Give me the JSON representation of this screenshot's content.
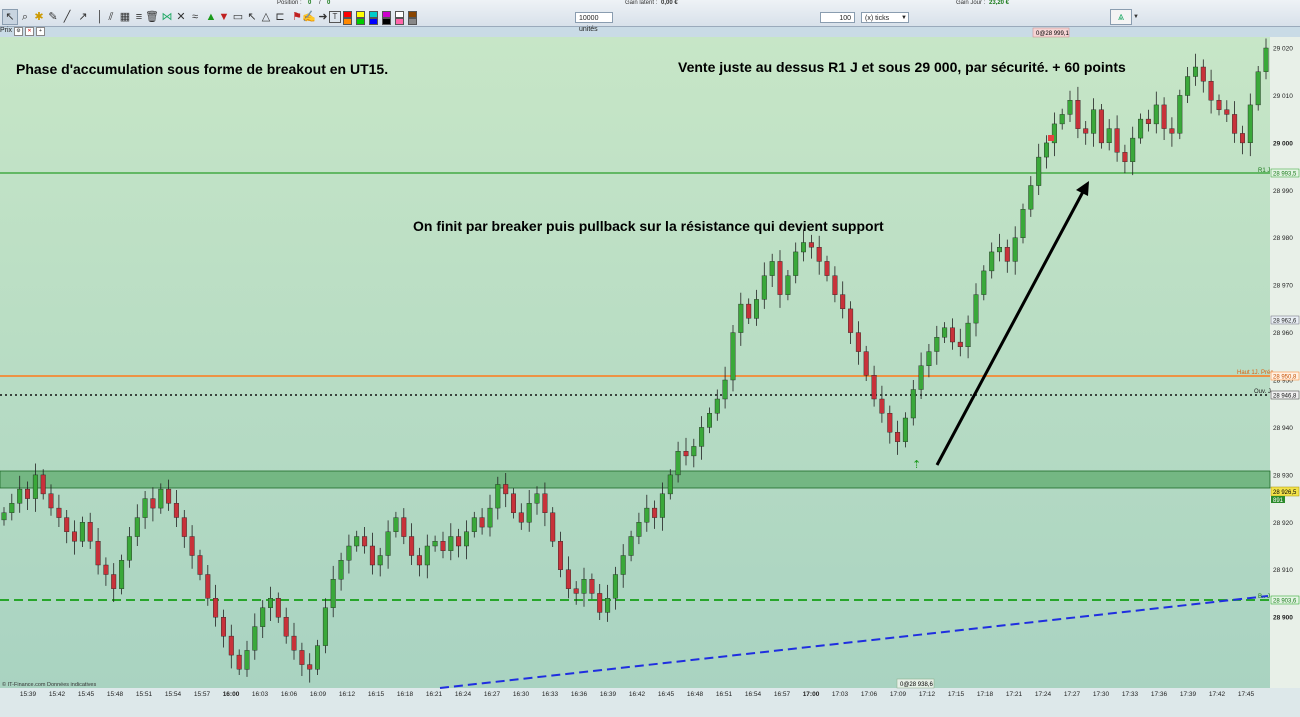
{
  "toolbar": {
    "position_label": "Position :",
    "position_value": "0",
    "position_sep": "/",
    "position_value2": "0",
    "gain_latent_label": "Gain latent :",
    "gain_latent_value": "0,00 €",
    "gain_jour_label": "Gain Jour :",
    "gain_jour_value": "23,20 €",
    "units_value": "10000 unités",
    "tick_count": "100",
    "tick_unit": "(x) ticks",
    "swatch_colors": [
      "#ff0000",
      "#ff8800",
      "#ffff00",
      "#00cc00",
      "#00cccc",
      "#0000ff",
      "#cc00cc",
      "#000000",
      "#ffffff",
      "#ff66aa",
      "#884400",
      "#888888"
    ]
  },
  "prix_label": "Prix",
  "colors": {
    "bull": "#3aa83a",
    "bear": "#c8323a",
    "wick": "#222222",
    "r1_line": "#2aa02a",
    "haut_line": "#ff7a1a",
    "ouv_line": "#111111",
    "support_line": "#14a014",
    "trend_line": "#1f2ee0",
    "zone_fill": "#3f9a4f"
  },
  "annotations": {
    "top_left": "Phase d'accumulation sous forme de breakout en UT15.",
    "top_right": "Vente juste au dessus R1 J et sous 29 000, par sécurité. + 60 points",
    "middle": "On finit par breaker puis pullback sur la résistance qui devient support"
  },
  "price_axis": {
    "ticks": [
      "29 020",
      "29 010",
      "29 000",
      "28 990",
      "28 980",
      "28 970",
      "28 960",
      "28 950",
      "28 940",
      "28 930",
      "28 920",
      "28 910",
      "28 900"
    ],
    "bold_ticks": [
      "29 000",
      "28 900"
    ]
  },
  "level_labels": {
    "r1_name": "R1 J",
    "r1_value": "28 993,5",
    "haut_name": "Haut 1J. Préc",
    "haut_value": "28 950,8",
    "ouv_name": "Ouv. J",
    "ouv_value": "28 946,8",
    "support_value": "28 903,6",
    "current_value": "28 926,5",
    "current_small": "891",
    "mid_value": "28 962,6",
    "top_marker": "0@28 999,1",
    "bottom_marker": "0@28 938,6",
    "support_name": "B.. J"
  },
  "time_axis": {
    "labels": [
      "15:39",
      "15:42",
      "15:45",
      "15:48",
      "15:51",
      "15:54",
      "15:57",
      "16:00",
      "16:03",
      "16:06",
      "16:09",
      "16:12",
      "16:15",
      "16:18",
      "16:21",
      "16:24",
      "16:27",
      "16:30",
      "16:33",
      "16:36",
      "16:39",
      "16:42",
      "16:45",
      "16:48",
      "16:51",
      "16:54",
      "16:57",
      "17:00",
      "17:03",
      "17:06",
      "17:09",
      "17:12",
      "17:15",
      "17:18",
      "17:21",
      "17:24",
      "17:27",
      "17:30",
      "17:33",
      "17:36",
      "17:39",
      "17:42",
      "17:45"
    ],
    "bold_labels": [
      "16:00",
      "17:00"
    ]
  },
  "watermark": "© IT-Finance.com  Données indicatives",
  "candle_closes": [
    28922,
    28924,
    28927,
    28925,
    28930,
    28926,
    28923,
    28921,
    28918,
    28916,
    28920,
    28916,
    28911,
    28909,
    28906,
    28912,
    28917,
    28921,
    28925,
    28923,
    28927,
    28924,
    28921,
    28917,
    28913,
    28909,
    28904,
    28900,
    28896,
    28892,
    28889,
    28893,
    28898,
    28902,
    28904,
    28900,
    28896,
    28893,
    28890,
    28889,
    28894,
    28902,
    28908,
    28912,
    28915,
    28917,
    28915,
    28911,
    28913,
    28918,
    28921,
    28917,
    28913,
    28911,
    28915,
    28916,
    28914,
    28917,
    28915,
    28918,
    28921,
    28919,
    28923,
    28928,
    28926,
    28922,
    28920,
    28924,
    28926,
    28922,
    28916,
    28910,
    28906,
    28905,
    28908,
    28905,
    28901,
    28904,
    28909,
    28913,
    28917,
    28920,
    28923,
    28921,
    28926,
    28930,
    28935,
    28934,
    28936,
    28940,
    28943,
    28946,
    28950,
    28960,
    28966,
    28963,
    28967,
    28972,
    28975,
    28968,
    28972,
    28977,
    28979,
    28978,
    28975,
    28972,
    28968,
    28965,
    28960,
    28956,
    28951,
    28946,
    28943,
    28939,
    28937,
    28942,
    28948,
    28953,
    28956,
    28959,
    28961,
    28958,
    28957,
    28962,
    28968,
    28973,
    28977,
    28978,
    28975,
    28980,
    28986,
    28991,
    28997,
    29000,
    29004,
    29006,
    29009,
    29003,
    29002,
    29007,
    29000,
    29003,
    28998,
    28996,
    29001,
    29005,
    29004,
    29008,
    29003,
    29002,
    29010,
    29014,
    29016,
    29013,
    29009,
    29007,
    29006,
    29002,
    29000,
    29008,
    29015,
    29020
  ]
}
